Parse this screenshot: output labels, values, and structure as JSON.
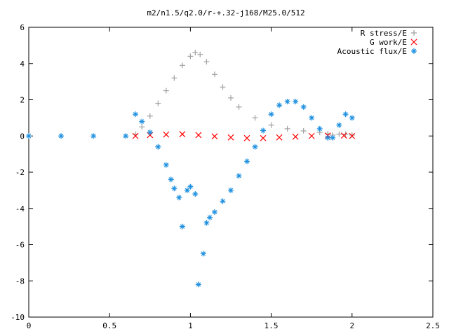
{
  "chart_data": {
    "type": "scatter",
    "title": "m2/n1.5/q2.0/r-+.32-j168/M25.0/512",
    "xlabel": "",
    "ylabel": "",
    "xlim": [
      0,
      2.5
    ],
    "ylim": [
      -10,
      6
    ],
    "xticks": [
      "0",
      "0.5",
      "1",
      "1.5",
      "2",
      "2.5"
    ],
    "yticks": [
      "6",
      "4",
      "2",
      "0",
      "-2",
      "-4",
      "-6",
      "-8",
      "-10"
    ],
    "grid": false,
    "legend_position": "top-right",
    "series": [
      {
        "name": "R stress/E",
        "marker": "+",
        "color": "#a0a0a0",
        "x": [
          0.66,
          0.7,
          0.75,
          0.8,
          0.85,
          0.9,
          0.95,
          1.0,
          1.03,
          1.06,
          1.1,
          1.15,
          1.2,
          1.25,
          1.3,
          1.4,
          1.5,
          1.6,
          1.7,
          1.8,
          1.85,
          1.88,
          1.92,
          1.96,
          2.0
        ],
        "y": [
          0.1,
          0.5,
          1.1,
          1.8,
          2.5,
          3.2,
          3.9,
          4.4,
          4.6,
          4.5,
          4.1,
          3.4,
          2.7,
          2.1,
          1.6,
          1.0,
          0.6,
          0.4,
          0.28,
          0.2,
          0.12,
          0.05,
          0.1,
          0.1,
          0.05
        ]
      },
      {
        "name": "G work/E",
        "marker": "x",
        "color": "#ff0000",
        "x": [
          0.66,
          0.75,
          0.85,
          0.95,
          1.05,
          1.15,
          1.25,
          1.35,
          1.45,
          1.55,
          1.65,
          1.75,
          1.85,
          1.95,
          2.0
        ],
        "y": [
          0.0,
          0.05,
          0.08,
          0.1,
          0.05,
          -0.02,
          -0.08,
          -0.12,
          -0.12,
          -0.08,
          -0.04,
          0.0,
          0.02,
          0.02,
          0.0
        ]
      },
      {
        "name": "Acoustic flux/E",
        "marker": "*",
        "color": "#1e90e0",
        "x": [
          0.0,
          0.2,
          0.4,
          0.6,
          0.66,
          0.7,
          0.75,
          0.8,
          0.85,
          0.88,
          0.9,
          0.93,
          0.95,
          0.98,
          1.0,
          1.03,
          1.05,
          1.08,
          1.1,
          1.12,
          1.15,
          1.2,
          1.25,
          1.3,
          1.35,
          1.4,
          1.45,
          1.5,
          1.55,
          1.6,
          1.65,
          1.7,
          1.75,
          1.8,
          1.85,
          1.88,
          1.92,
          1.96,
          2.0
        ],
        "y": [
          0.0,
          0.0,
          0.0,
          0.0,
          1.2,
          0.8,
          0.2,
          -0.6,
          -1.6,
          -2.4,
          -2.9,
          -3.4,
          -5.0,
          -3.0,
          -2.8,
          -3.2,
          -8.2,
          -6.5,
          -4.8,
          -4.5,
          -4.2,
          -3.6,
          -3.0,
          -2.2,
          -1.4,
          -0.6,
          0.3,
          1.2,
          1.7,
          1.9,
          1.9,
          1.6,
          1.0,
          0.4,
          -0.1,
          -0.1,
          0.6,
          1.2,
          1.0
        ]
      }
    ]
  }
}
